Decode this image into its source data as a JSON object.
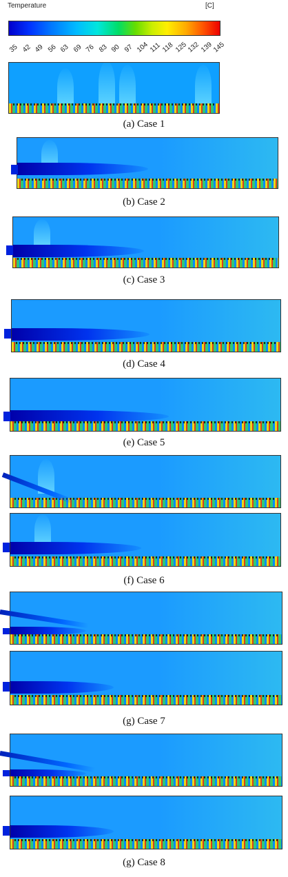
{
  "colorbar": {
    "title": "Temperature",
    "unit": "[C]",
    "ticks": [
      "35",
      "42",
      "49",
      "56",
      "63",
      "69",
      "76",
      "83",
      "90",
      "97",
      "104",
      "111",
      "118",
      "125",
      "132",
      "139",
      "145"
    ]
  },
  "captions": {
    "case1": "(a)  Case  1",
    "case2": "(b)  Case  2",
    "case3": "(c)  Case  3",
    "case4": "(d)  Case  4",
    "case5": "(e)  Case  5",
    "case6": "(f)  Case  6",
    "case7": "(g)  Case  7",
    "case8": "(g)  Case  8"
  }
}
